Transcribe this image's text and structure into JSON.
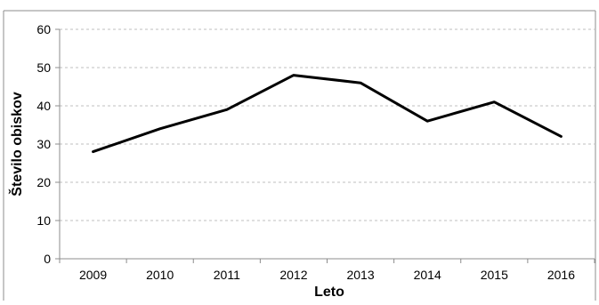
{
  "chart_data": {
    "type": "line",
    "title": "",
    "xlabel": "Leto",
    "ylabel": "Število obiskov",
    "categories": [
      "2009",
      "2010",
      "2011",
      "2012",
      "2013",
      "2014",
      "2015",
      "2016"
    ],
    "series": [
      {
        "values": [
          28,
          34,
          39,
          48,
          46,
          36,
          41,
          32
        ],
        "color": "#000000"
      }
    ],
    "ylim": [
      0,
      60
    ],
    "yticks": [
      0,
      10,
      20,
      30,
      40,
      50,
      60
    ],
    "grid": {
      "horizontal": true,
      "vertical": false,
      "style": "dashed",
      "color": "#bfbfbf"
    },
    "legend": "none"
  }
}
